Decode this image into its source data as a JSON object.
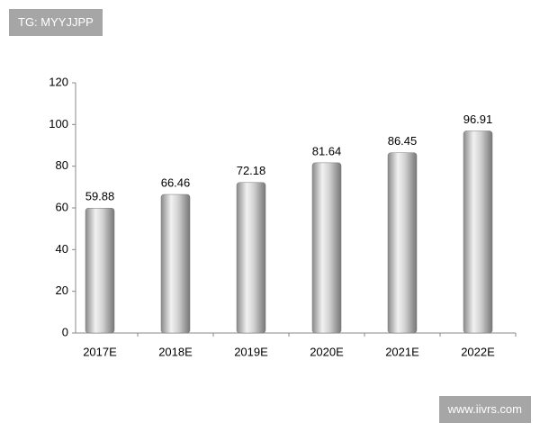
{
  "chart_data": {
    "type": "bar",
    "categories": [
      "2017E",
      "2018E",
      "2019E",
      "2020E",
      "2021E",
      "2022E"
    ],
    "values": [
      59.88,
      66.46,
      72.18,
      81.64,
      86.45,
      96.91
    ],
    "color": "#b8b8b8",
    "ylim": [
      0,
      120
    ],
    "yticks": [
      0,
      20,
      40,
      60,
      80,
      100,
      120
    ],
    "grid": false
  },
  "badges": [
    "TG: MYYJJPP",
    "www.iivrs.com"
  ]
}
